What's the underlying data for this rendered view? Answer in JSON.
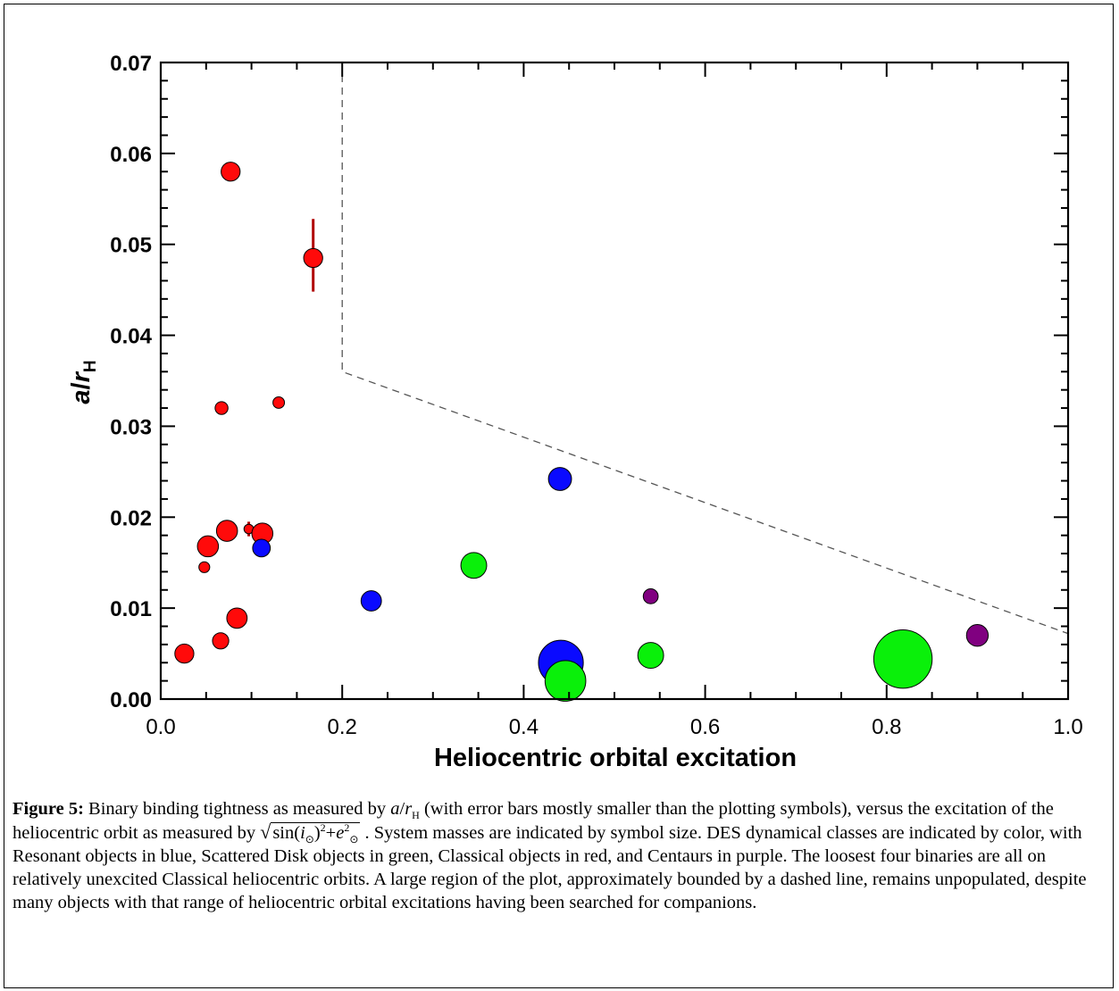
{
  "chart_data": {
    "type": "scatter",
    "xlabel": "Heliocentric orbital excitation",
    "ylabel": "a/r_H",
    "ylabel_parts": {
      "a": "a",
      "slash": "/",
      "r": "r",
      "sub": "H"
    },
    "xlim": [
      0.0,
      1.0
    ],
    "ylim": [
      0.0,
      0.07
    ],
    "x_ticks": [
      "0.0",
      "0.2",
      "0.4",
      "0.6",
      "0.8",
      "1.0"
    ],
    "x_tick_values": [
      0.0,
      0.2,
      0.4,
      0.6,
      0.8,
      1.0
    ],
    "y_ticks": [
      "0.00",
      "0.01",
      "0.02",
      "0.03",
      "0.04",
      "0.05",
      "0.06",
      "0.07"
    ],
    "y_tick_values": [
      0.0,
      0.01,
      0.02,
      0.03,
      0.04,
      0.05,
      0.06,
      0.07
    ],
    "grid": false,
    "colors": {
      "Resonant": "#0a0aff",
      "Scattered Disk": "#0af00a",
      "Classical": "#ff0a0a",
      "Centaurs": "#800080",
      "errorbar": "#b00000",
      "boundary": "#555555"
    },
    "boundary_line": {
      "style": "dashed",
      "points": [
        [
          0.2,
          0.07
        ],
        [
          0.2,
          0.036
        ],
        [
          1.0,
          0.0072
        ]
      ]
    },
    "points": [
      {
        "x": 0.077,
        "y": 0.058,
        "cls": "Classical",
        "size": 1.4
      },
      {
        "x": 0.168,
        "y": 0.0485,
        "cls": "Classical",
        "size": 1.4,
        "err": [
          0.0448,
          0.0528
        ]
      },
      {
        "x": 0.067,
        "y": 0.032,
        "cls": "Classical",
        "size": 0.95,
        "err": [
          0.0313,
          0.0327
        ]
      },
      {
        "x": 0.13,
        "y": 0.0326,
        "cls": "Classical",
        "size": 0.85
      },
      {
        "x": 0.073,
        "y": 0.0185,
        "cls": "Classical",
        "size": 1.55
      },
      {
        "x": 0.097,
        "y": 0.0187,
        "cls": "Classical",
        "size": 0.7,
        "err": [
          0.0179,
          0.0195
        ]
      },
      {
        "x": 0.112,
        "y": 0.0182,
        "cls": "Classical",
        "size": 1.55
      },
      {
        "x": 0.052,
        "y": 0.0168,
        "cls": "Classical",
        "size": 1.55
      },
      {
        "x": 0.048,
        "y": 0.0145,
        "cls": "Classical",
        "size": 0.8,
        "err": [
          0.014,
          0.015
        ]
      },
      {
        "x": 0.084,
        "y": 0.0089,
        "cls": "Classical",
        "size": 1.5
      },
      {
        "x": 0.066,
        "y": 0.0064,
        "cls": "Classical",
        "size": 1.2
      },
      {
        "x": 0.026,
        "y": 0.005,
        "cls": "Classical",
        "size": 1.4
      },
      {
        "x": 0.111,
        "y": 0.0166,
        "cls": "Resonant",
        "size": 1.3
      },
      {
        "x": 0.232,
        "y": 0.0108,
        "cls": "Resonant",
        "size": 1.5
      },
      {
        "x": 0.44,
        "y": 0.0242,
        "cls": "Resonant",
        "size": 1.7
      },
      {
        "x": 0.441,
        "y": 0.004,
        "cls": "Resonant",
        "size": 3.3
      },
      {
        "x": 0.345,
        "y": 0.0147,
        "cls": "Scattered Disk",
        "size": 1.9
      },
      {
        "x": 0.54,
        "y": 0.0048,
        "cls": "Scattered Disk",
        "size": 1.9
      },
      {
        "x": 0.446,
        "y": 0.002,
        "cls": "Scattered Disk",
        "size": 3.0
      },
      {
        "x": 0.818,
        "y": 0.0044,
        "cls": "Scattered Disk",
        "size": 4.3
      },
      {
        "x": 0.54,
        "y": 0.0113,
        "cls": "Centaurs",
        "size": 1.1
      },
      {
        "x": 0.9,
        "y": 0.007,
        "cls": "Centaurs",
        "size": 1.6
      }
    ]
  },
  "caption": {
    "label": "Figure 5:",
    "part1": " Binary binding tightness as measured by ",
    "a": "a",
    "slash": "/",
    "r": "r",
    "rsub": "H",
    "part2": " (with error bars mostly smaller than the plotting symbols), versus the excitation of the heliocentric orbit as measured by ",
    "sqrt_sin": "sin(",
    "sqrt_i": "i",
    "sqrt_isub": "⊙",
    "sqrt_close": ")",
    "sqrt_sup": "2",
    "sqrt_plus": "+",
    "sqrt_e": "e",
    "sqrt_esup": "2",
    "sqrt_esub": "⊙",
    "part3": " .  System masses are indicated by symbol size.  DES dynamical classes are indicated by color, with Resonant objects in blue, Scattered Disk objects in green, Classical objects in red, and Centaurs in purple.  The loosest four binaries are all on relatively unexcited Classical heliocentric orbits.  A large region of the plot, approximately bounded by a dashed line, remains unpopulated, despite many objects with that range of heliocentric orbital excitations having been searched for companions."
  }
}
